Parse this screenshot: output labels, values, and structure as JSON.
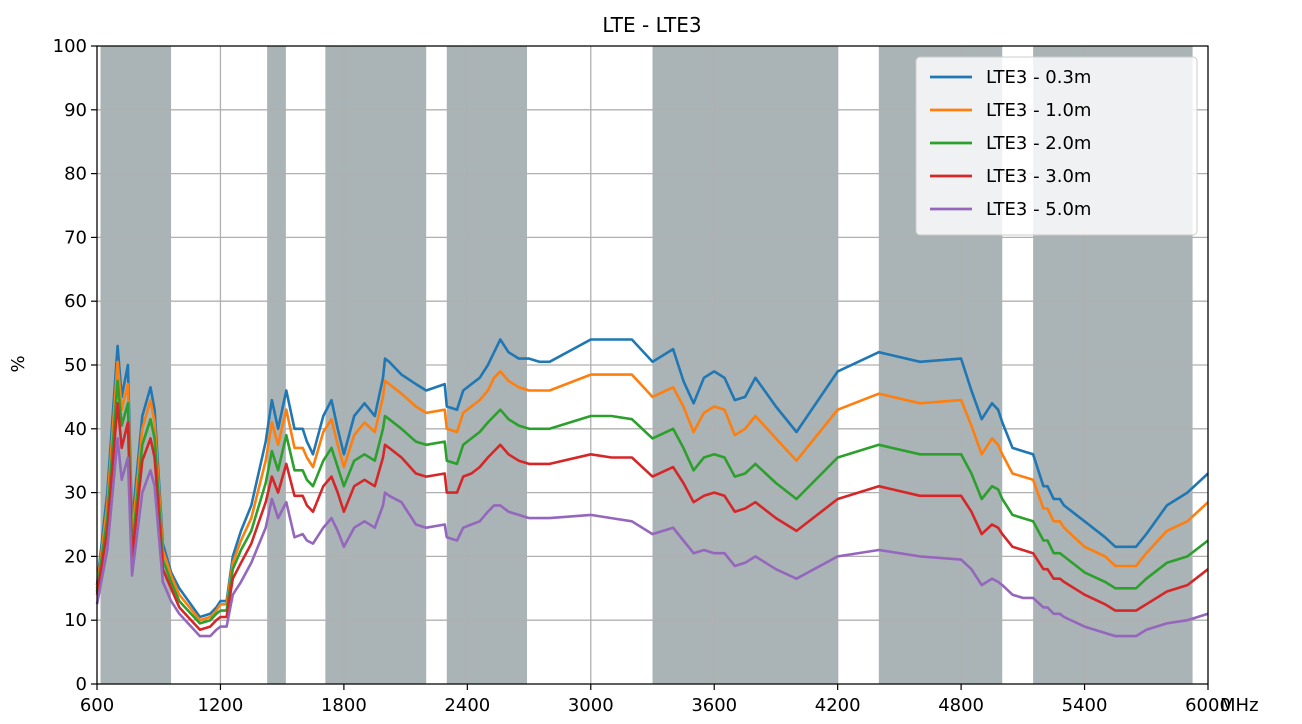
{
  "chart_data": {
    "type": "line",
    "title": "LTE - LTE3",
    "xlabel": "",
    "ylabel": "%",
    "x_unit": "MHz",
    "xlim": [
      600,
      6000
    ],
    "ylim": [
      0,
      100
    ],
    "xticks": [
      600,
      1200,
      1800,
      2400,
      3000,
      3600,
      4200,
      4800,
      5400,
      6000
    ],
    "yticks": [
      0,
      10,
      20,
      30,
      40,
      50,
      60,
      70,
      80,
      90,
      100
    ],
    "grid": true,
    "legend": "top-right",
    "shaded_bands": [
      [
        617,
        960
      ],
      [
        1427,
        1518
      ],
      [
        1710,
        2200
      ],
      [
        2300,
        2690
      ],
      [
        3300,
        4200
      ],
      [
        4400,
        5000
      ],
      [
        5150,
        5925
      ]
    ],
    "band_color": "#aab3b6",
    "series": [
      {
        "name": "LTE3 - 0.3m",
        "color": "#1f77b4",
        "x": [
          600,
          650,
          700,
          720,
          750,
          770,
          820,
          860,
          880,
          920,
          960,
          1000,
          1100,
          1150,
          1180,
          1200,
          1230,
          1260,
          1300,
          1350,
          1420,
          1450,
          1480,
          1520,
          1560,
          1600,
          1620,
          1650,
          1700,
          1740,
          1770,
          1800,
          1850,
          1900,
          1950,
          1990,
          2000,
          2020,
          2080,
          2150,
          2200,
          2290,
          2300,
          2350,
          2380,
          2420,
          2460,
          2500,
          2530,
          2560,
          2600,
          2650,
          2700,
          2750,
          2800,
          3000,
          3100,
          3200,
          3300,
          3400,
          3450,
          3500,
          3550,
          3600,
          3650,
          3700,
          3750,
          3800,
          3900,
          4000,
          4200,
          4400,
          4600,
          4800,
          4850,
          4900,
          4950,
          4980,
          5000,
          5050,
          5100,
          5150,
          5200,
          5220,
          5250,
          5280,
          5300,
          5400,
          5500,
          5550,
          5600,
          5650,
          5700,
          5800,
          5900,
          6000
        ],
        "values": [
          15.5,
          30,
          53,
          45,
          50,
          25,
          42,
          46.5,
          43,
          22,
          17.5,
          15,
          10.5,
          11,
          12,
          13,
          13,
          20,
          24,
          28,
          38,
          44.5,
          40,
          46,
          40,
          40,
          38,
          36,
          42,
          44.5,
          40,
          36,
          42,
          44,
          42,
          48,
          51,
          50.5,
          48.5,
          47,
          46,
          47,
          43.5,
          43,
          46,
          47,
          48,
          50,
          52,
          54,
          52,
          51,
          51,
          50.5,
          50.5,
          54,
          54,
          54,
          50.5,
          52.5,
          47.5,
          44,
          48,
          49,
          48,
          44.5,
          45,
          48,
          43.5,
          39.5,
          49,
          52,
          50.5,
          51,
          46,
          41.5,
          44,
          43,
          41,
          37,
          36.5,
          36,
          31,
          31,
          29,
          29,
          28,
          25.5,
          23,
          21.5,
          21.5,
          21.5,
          23.5,
          28,
          30,
          33
        ]
      },
      {
        "name": "LTE3 - 1.0m",
        "color": "#ff7f0e",
        "x": [
          600,
          650,
          700,
          720,
          750,
          770,
          820,
          860,
          880,
          920,
          960,
          1000,
          1100,
          1150,
          1180,
          1200,
          1230,
          1260,
          1300,
          1350,
          1420,
          1450,
          1480,
          1520,
          1560,
          1600,
          1620,
          1650,
          1700,
          1740,
          1770,
          1800,
          1850,
          1900,
          1950,
          1990,
          2000,
          2020,
          2080,
          2150,
          2200,
          2290,
          2300,
          2350,
          2380,
          2420,
          2460,
          2500,
          2530,
          2560,
          2600,
          2650,
          2700,
          2750,
          2800,
          3000,
          3100,
          3200,
          3300,
          3400,
          3450,
          3500,
          3550,
          3600,
          3650,
          3700,
          3750,
          3800,
          3900,
          4000,
          4200,
          4400,
          4600,
          4800,
          4850,
          4900,
          4950,
          4980,
          5000,
          5050,
          5100,
          5150,
          5200,
          5220,
          5250,
          5280,
          5300,
          5400,
          5500,
          5550,
          5600,
          5650,
          5700,
          5800,
          5900,
          6000
        ],
        "values": [
          15,
          28,
          50.5,
          43,
          47,
          23,
          40,
          44.5,
          41,
          21,
          17,
          14,
          10,
          10.5,
          11.5,
          12.5,
          12.5,
          19,
          22.5,
          26,
          35,
          41,
          37.5,
          43,
          37,
          37,
          35.5,
          34,
          39.5,
          41.5,
          37.5,
          34,
          39,
          41,
          39.5,
          45,
          47.5,
          47,
          45.5,
          43.5,
          42.5,
          43,
          40,
          39.5,
          42.5,
          43.5,
          44.5,
          46,
          48,
          49,
          47.5,
          46.5,
          46,
          46,
          46,
          48.5,
          48.5,
          48.5,
          45,
          46.5,
          43.5,
          39.5,
          42.5,
          43.5,
          43,
          39,
          40,
          42,
          38.5,
          35,
          43,
          45.5,
          44,
          44.5,
          40.5,
          36,
          38.5,
          37.5,
          36,
          33,
          32.5,
          32,
          27.5,
          27.5,
          25.5,
          25.5,
          24.5,
          21.5,
          20,
          18.5,
          18.5,
          18.5,
          20.5,
          24,
          25.5,
          28.5
        ]
      },
      {
        "name": "LTE3 - 2.0m",
        "color": "#2ca02c",
        "x": [
          600,
          650,
          700,
          720,
          750,
          770,
          820,
          860,
          880,
          920,
          960,
          1000,
          1100,
          1150,
          1180,
          1200,
          1230,
          1260,
          1300,
          1350,
          1420,
          1450,
          1480,
          1520,
          1560,
          1600,
          1620,
          1650,
          1700,
          1740,
          1770,
          1800,
          1850,
          1900,
          1950,
          1990,
          2000,
          2020,
          2080,
          2150,
          2200,
          2290,
          2300,
          2350,
          2380,
          2420,
          2460,
          2500,
          2530,
          2560,
          2600,
          2650,
          2700,
          2750,
          2800,
          3000,
          3100,
          3200,
          3300,
          3400,
          3450,
          3500,
          3550,
          3600,
          3650,
          3700,
          3750,
          3800,
          3900,
          4000,
          4200,
          4400,
          4600,
          4800,
          4850,
          4900,
          4950,
          4980,
          5000,
          5050,
          5100,
          5150,
          5200,
          5220,
          5250,
          5280,
          5300,
          5400,
          5500,
          5550,
          5600,
          5650,
          5700,
          5800,
          5900,
          6000
        ],
        "values": [
          14.5,
          26,
          47.5,
          40.5,
          44,
          21,
          37.5,
          41.5,
          38.5,
          19.5,
          16,
          13,
          9.5,
          10,
          11,
          11.5,
          11.5,
          18,
          21,
          24,
          31.5,
          36.5,
          33.5,
          39,
          33.5,
          33.5,
          32,
          31,
          35,
          37,
          34,
          31,
          35,
          36,
          35,
          40,
          42,
          41.5,
          40,
          38,
          37.5,
          38,
          35,
          34.5,
          37.5,
          38.5,
          39.5,
          41,
          42,
          43,
          41.5,
          40.5,
          40,
          40,
          40,
          42,
          42,
          41.5,
          38.5,
          40,
          37,
          33.5,
          35.5,
          36,
          35.5,
          32.5,
          33,
          34.5,
          31.5,
          29,
          35.5,
          37.5,
          36,
          36,
          33,
          29,
          31,
          30.5,
          29,
          26.5,
          26,
          25.5,
          22.5,
          22.5,
          20.5,
          20.5,
          20,
          17.5,
          16,
          15,
          15,
          15,
          16.5,
          19,
          20,
          22.5
        ]
      },
      {
        "name": "LTE3 - 3.0m",
        "color": "#d62728",
        "x": [
          600,
          650,
          700,
          720,
          750,
          770,
          820,
          860,
          880,
          920,
          960,
          1000,
          1100,
          1150,
          1180,
          1200,
          1230,
          1260,
          1300,
          1350,
          1420,
          1450,
          1480,
          1520,
          1560,
          1600,
          1620,
          1650,
          1700,
          1740,
          1770,
          1800,
          1850,
          1900,
          1950,
          1990,
          2000,
          2020,
          2080,
          2150,
          2200,
          2290,
          2300,
          2350,
          2380,
          2420,
          2460,
          2500,
          2530,
          2560,
          2600,
          2650,
          2700,
          2750,
          2800,
          3000,
          3100,
          3200,
          3300,
          3400,
          3450,
          3500,
          3550,
          3600,
          3650,
          3700,
          3750,
          3800,
          3900,
          4000,
          4200,
          4400,
          4600,
          4800,
          4850,
          4900,
          4950,
          4980,
          5000,
          5050,
          5100,
          5150,
          5200,
          5220,
          5250,
          5280,
          5300,
          5400,
          5500,
          5550,
          5600,
          5650,
          5700,
          5800,
          5900,
          6000
        ],
        "values": [
          14,
          24,
          44,
          37,
          41,
          19.5,
          35,
          38.5,
          35.5,
          18,
          15,
          12,
          8.5,
          9,
          10,
          10.5,
          10.5,
          16.5,
          19,
          22,
          28.5,
          32.5,
          30,
          34.5,
          29.5,
          29.5,
          28,
          27,
          31,
          32.5,
          30,
          27,
          31,
          32,
          31,
          35.5,
          37.5,
          37,
          35.5,
          33,
          32.5,
          33,
          30,
          30,
          32.5,
          33,
          34,
          35.5,
          36.5,
          37.5,
          36,
          35,
          34.5,
          34.5,
          34.5,
          36,
          35.5,
          35.5,
          32.5,
          34,
          31.5,
          28.5,
          29.5,
          30,
          29.5,
          27,
          27.5,
          28.5,
          26,
          24,
          29,
          31,
          29.5,
          29.5,
          27,
          23.5,
          25,
          24.5,
          23.5,
          21.5,
          21,
          20.5,
          18,
          18,
          16.5,
          16.5,
          16,
          14,
          12.5,
          11.5,
          11.5,
          11.5,
          12.5,
          14.5,
          15.5,
          18
        ]
      },
      {
        "name": "LTE3 - 5.0m",
        "color": "#9467bd",
        "x": [
          600,
          650,
          700,
          720,
          750,
          770,
          820,
          860,
          880,
          920,
          960,
          1000,
          1100,
          1150,
          1180,
          1200,
          1230,
          1260,
          1300,
          1350,
          1420,
          1450,
          1480,
          1520,
          1560,
          1600,
          1620,
          1650,
          1700,
          1740,
          1770,
          1800,
          1850,
          1900,
          1950,
          1990,
          2000,
          2020,
          2080,
          2150,
          2200,
          2290,
          2300,
          2350,
          2380,
          2420,
          2460,
          2500,
          2530,
          2560,
          2600,
          2650,
          2700,
          2750,
          2800,
          3000,
          3100,
          3200,
          3300,
          3400,
          3450,
          3500,
          3550,
          3600,
          3650,
          3700,
          3750,
          3800,
          3900,
          4000,
          4200,
          4400,
          4600,
          4800,
          4850,
          4900,
          4950,
          4980,
          5000,
          5050,
          5100,
          5150,
          5200,
          5220,
          5250,
          5280,
          5300,
          5400,
          5500,
          5550,
          5600,
          5650,
          5700,
          5800,
          5900,
          6000
        ],
        "values": [
          12.5,
          21,
          38.5,
          32,
          35.5,
          17,
          30,
          33.5,
          31,
          16,
          13,
          11,
          7.5,
          7.5,
          8.5,
          9,
          9,
          14,
          16,
          19,
          24.5,
          29,
          26,
          28.5,
          23,
          23.5,
          22.5,
          22,
          24.5,
          26,
          24,
          21.5,
          24.5,
          25.5,
          24.5,
          28,
          30,
          29.5,
          28.5,
          25,
          24.5,
          25,
          23,
          22.5,
          24.5,
          25,
          25.5,
          27,
          28,
          28,
          27,
          26.5,
          26,
          26,
          26,
          26.5,
          26,
          25.5,
          23.5,
          24.5,
          22.5,
          20.5,
          21,
          20.5,
          20.5,
          18.5,
          19,
          20,
          18,
          16.5,
          20,
          21,
          20,
          19.5,
          18,
          15.5,
          16.5,
          16,
          15.5,
          14,
          13.5,
          13.5,
          12,
          12,
          11,
          11,
          10.5,
          9,
          8,
          7.5,
          7.5,
          7.5,
          8.5,
          9.5,
          10,
          11
        ]
      }
    ]
  }
}
